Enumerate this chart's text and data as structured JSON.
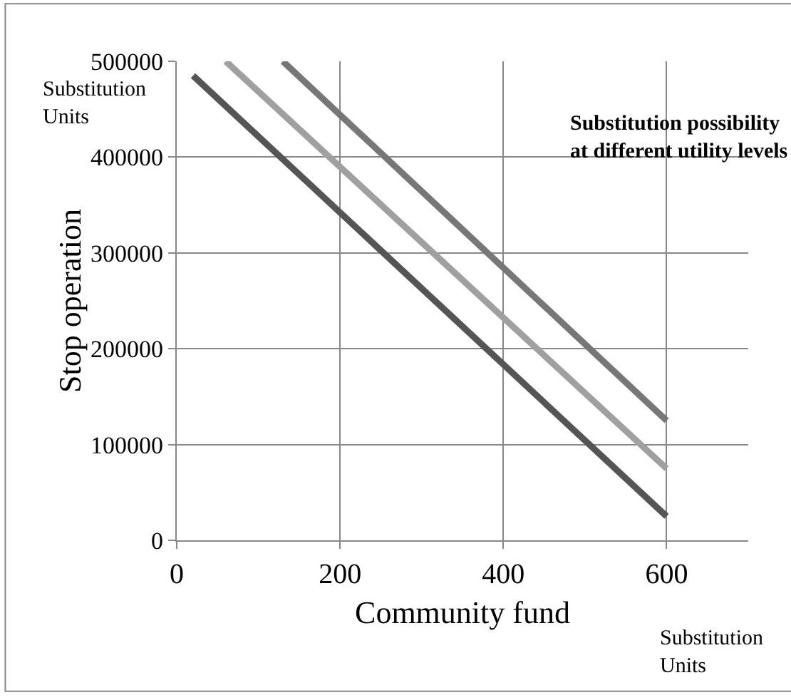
{
  "chart_data": {
    "type": "line",
    "title": "Substitution possibility at different utility levels",
    "xlabel": "Community fund",
    "ylabel": "Stop operation",
    "annotations": [
      "Substitution Units",
      "Substitution Units"
    ],
    "series": [
      {
        "color": "#555555",
        "x": [
          20,
          600
        ],
        "values": [
          485000,
          25000
        ]
      },
      {
        "color": "#a0a0a0",
        "x": [
          60,
          600
        ],
        "values": [
          500000,
          75000
        ]
      },
      {
        "color": "#777777",
        "x": [
          130,
          600
        ],
        "values": [
          500000,
          125000
        ]
      }
    ],
    "xlim": [
      0,
      700
    ],
    "xticks": [
      0,
      200,
      400,
      600
    ],
    "ylim": [
      0,
      500000
    ],
    "yticks": [
      0,
      100000,
      200000,
      300000,
      400000,
      500000
    ],
    "grid": true,
    "marker": "none",
    "line_style": "solid"
  }
}
